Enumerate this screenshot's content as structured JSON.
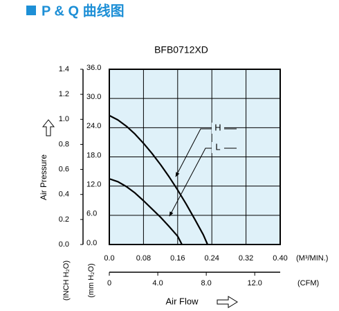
{
  "header": {
    "title": "P & Q 曲线图"
  },
  "chart_data": {
    "type": "line",
    "title": "BFB0712XD",
    "y_label": "Air Pressure",
    "x_label": "Air Flow",
    "y_unit": "(mm H₂O)",
    "y2_unit": "(INCH H₂O)",
    "x_unit": "(M³/MIN.)",
    "x2_unit": "(CFM)",
    "xlim": [
      0,
      0.4
    ],
    "xticks": [
      {
        "value": 0,
        "label": "0.0"
      },
      0.08,
      0.16,
      0.24,
      0.32,
      {
        "value": 0.4,
        "label": "0.40"
      }
    ],
    "x2lim": [
      0,
      14.1
    ],
    "x2ticks": [
      0,
      {
        "value": 4,
        "label": "4.0"
      },
      {
        "value": 8,
        "label": "8.0"
      },
      {
        "value": 12,
        "label": "12.0"
      }
    ],
    "ylim": [
      0,
      36
    ],
    "yticks": [
      {
        "value": 0,
        "label": "0.0"
      },
      {
        "value": 6,
        "label": "6.0"
      },
      {
        "value": 12,
        "label": "12.0"
      },
      {
        "value": 18,
        "label": "18.0"
      },
      {
        "value": 24,
        "label": "24.0"
      },
      {
        "value": 30,
        "label": "30.0"
      },
      {
        "value": 36,
        "label": "36.0"
      }
    ],
    "y2lim": [
      0,
      1.4
    ],
    "y2ticks": [
      {
        "value": 0,
        "label": "0.0"
      },
      0.2,
      0.4,
      0.6,
      0.8,
      {
        "value": 1.0,
        "label": "1.0"
      },
      1.2,
      1.4
    ],
    "grid": true,
    "background": "#dff1f9",
    "series": [
      {
        "name": "H",
        "color": "#000000",
        "x": [
          0,
          0.02,
          0.04,
          0.06,
          0.08,
          0.1,
          0.12,
          0.14,
          0.16,
          0.18,
          0.2,
          0.22,
          0.23
        ],
        "values": [
          26.5,
          25.6,
          24.3,
          22.7,
          20.8,
          18.7,
          16.4,
          13.9,
          11.2,
          8.3,
          5.2,
          2.0,
          0
        ]
      },
      {
        "name": "L",
        "color": "#000000",
        "x": [
          0,
          0.02,
          0.04,
          0.06,
          0.08,
          0.1,
          0.12,
          0.14,
          0.16,
          0.17
        ],
        "values": [
          13.5,
          12.9,
          11.9,
          10.6,
          9.0,
          7.3,
          5.6,
          3.7,
          1.7,
          0
        ]
      }
    ]
  }
}
